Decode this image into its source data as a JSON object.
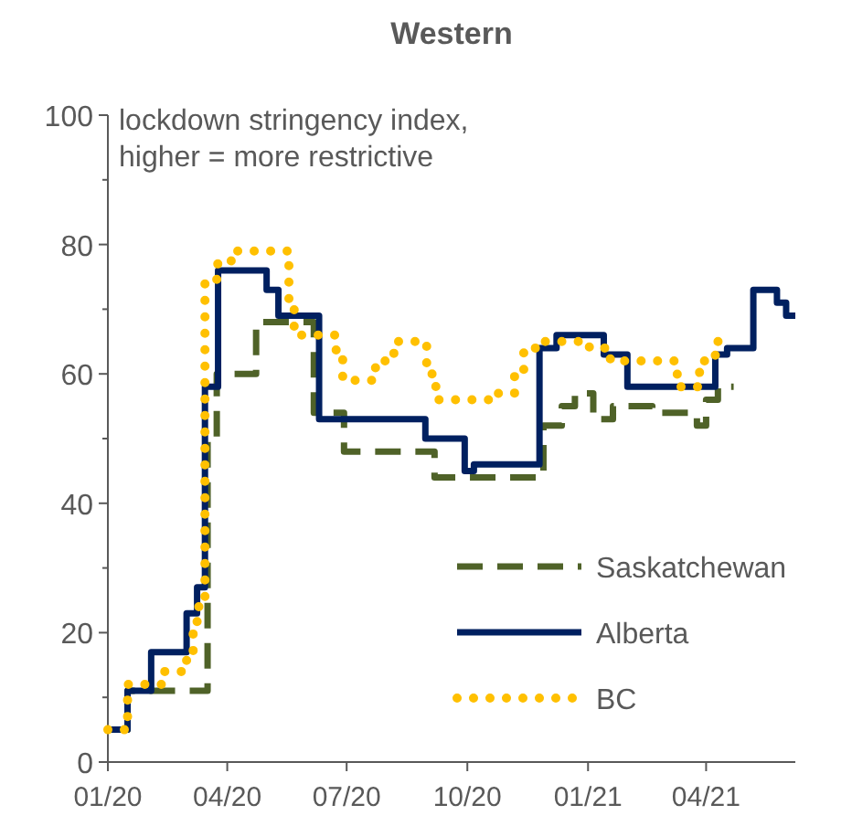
{
  "chart_data": {
    "type": "step",
    "title": "Western",
    "ylabel": "lockdown stringency index,\nhigher = more restrictive",
    "xlim": [
      "2020-01-01",
      "2021-06-08"
    ],
    "xticks": [
      {
        "value": "2020-01-01",
        "label": "01/20"
      },
      {
        "value": "2020-04-01",
        "label": "04/20"
      },
      {
        "value": "2020-07-01",
        "label": "07/20"
      },
      {
        "value": "2020-10-01",
        "label": "10/20"
      },
      {
        "value": "2021-01-01",
        "label": "01/21"
      },
      {
        "value": "2021-04-01",
        "label": "04/21"
      }
    ],
    "ylim": [
      0,
      100
    ],
    "yticks": [
      0,
      20,
      40,
      60,
      80,
      100
    ],
    "legend": "bottom right",
    "grid": false,
    "series": [
      {
        "name": "Saskatchewan",
        "color": "#4f6228",
        "line_style": "dashed",
        "x": [
          "2020-01-01",
          "2020-01-16",
          "2020-03-17",
          "2020-03-24",
          "2020-04-23",
          "2020-06-06",
          "2020-06-29",
          "2020-09-06",
          "2020-11-28",
          "2020-12-12",
          "2020-12-22",
          "2021-01-05",
          "2021-01-20",
          "2021-02-19",
          "2021-03-25",
          "2021-04-01",
          "2021-04-10",
          "2021-04-22"
        ],
        "values": [
          5,
          11,
          50,
          60,
          68,
          54,
          48,
          44,
          52,
          55,
          57,
          53,
          55,
          54,
          52,
          56,
          58,
          58
        ]
      },
      {
        "name": "Alberta",
        "color": "#002060",
        "line_style": "solid",
        "x": [
          "2020-01-01",
          "2020-01-16",
          "2020-02-03",
          "2020-03-01",
          "2020-03-09",
          "2020-03-15",
          "2020-03-25",
          "2020-05-01",
          "2020-05-10",
          "2020-06-10",
          "2020-08-30",
          "2020-09-29",
          "2020-10-06",
          "2020-11-25",
          "2020-12-08",
          "2021-01-13",
          "2021-01-31",
          "2021-04-08",
          "2021-04-17",
          "2021-05-07",
          "2021-05-25",
          "2021-06-01",
          "2021-06-08"
        ],
        "values": [
          5,
          11,
          17,
          23,
          27,
          58,
          76,
          73,
          69,
          53,
          50,
          45,
          46,
          64,
          66,
          63,
          58,
          63,
          64,
          73,
          71,
          69,
          69
        ]
      },
      {
        "name": "BC",
        "color": "#ffc000",
        "line_style": "dotted",
        "x": [
          "2020-01-01",
          "2020-01-16",
          "2020-02-13",
          "2020-03-01",
          "2020-03-06",
          "2020-03-09",
          "2020-03-15",
          "2020-03-24",
          "2020-04-04",
          "2020-05-18",
          "2020-05-22",
          "2020-06-23",
          "2020-06-28",
          "2020-07-23",
          "2020-08-06",
          "2020-08-31",
          "2020-09-07",
          "2020-10-07",
          "2020-10-24",
          "2020-11-06",
          "2020-11-13",
          "2020-11-25",
          "2021-01-02",
          "2021-01-18",
          "2021-03-10",
          "2021-03-27",
          "2021-04-08",
          "2021-04-11"
        ],
        "values": [
          5,
          12,
          14,
          16,
          21,
          24,
          74,
          77,
          79,
          70,
          66,
          63,
          59,
          62,
          65,
          60,
          56,
          56,
          57,
          60,
          64,
          65,
          64,
          62,
          58,
          62,
          65,
          65
        ]
      }
    ]
  }
}
